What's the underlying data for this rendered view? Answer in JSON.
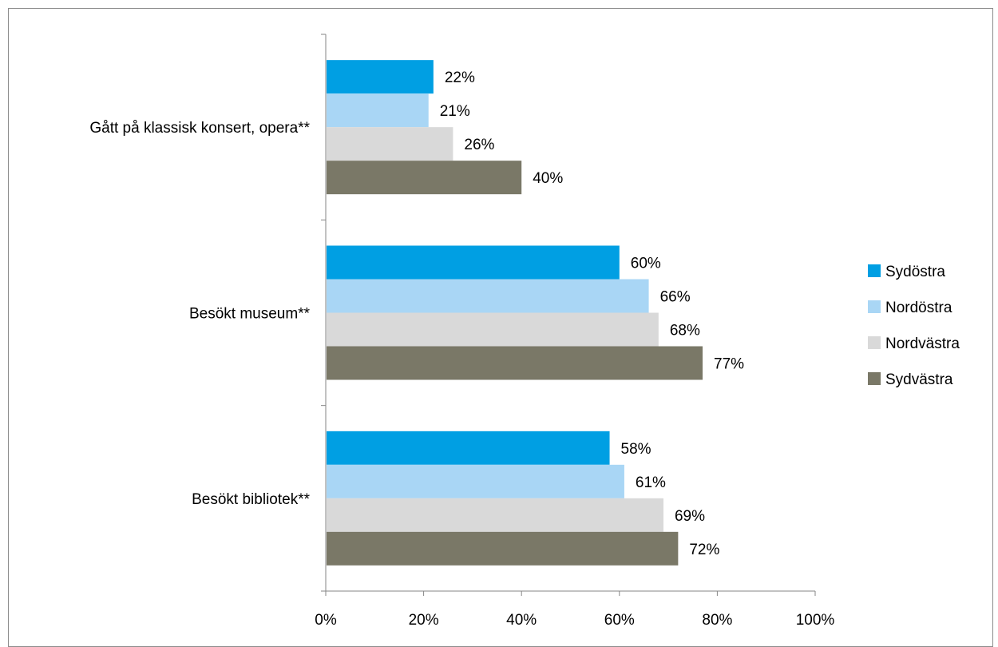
{
  "chart_data": {
    "type": "bar",
    "orientation": "horizontal",
    "categories": [
      "Gått på klassisk konsert, opera**",
      "Besökt museum**",
      "Besökt bibliotek**"
    ],
    "series": [
      {
        "name": "Sydöstra",
        "color": "#009fe3",
        "values": [
          22,
          60,
          58
        ]
      },
      {
        "name": "Nordöstra",
        "color": "#a9d6f5",
        "values": [
          21,
          66,
          61
        ]
      },
      {
        "name": "Nordvästra",
        "color": "#d9d9d9",
        "values": [
          26,
          68,
          69
        ]
      },
      {
        "name": "Sydvästra",
        "color": "#7a7867",
        "values": [
          40,
          77,
          72
        ]
      }
    ],
    "xlim": [
      0,
      100
    ],
    "x_ticks": [
      "0%",
      "20%",
      "40%",
      "60%",
      "80%",
      "100%"
    ],
    "value_suffix": "%",
    "grid": false,
    "legend_position": "right"
  }
}
